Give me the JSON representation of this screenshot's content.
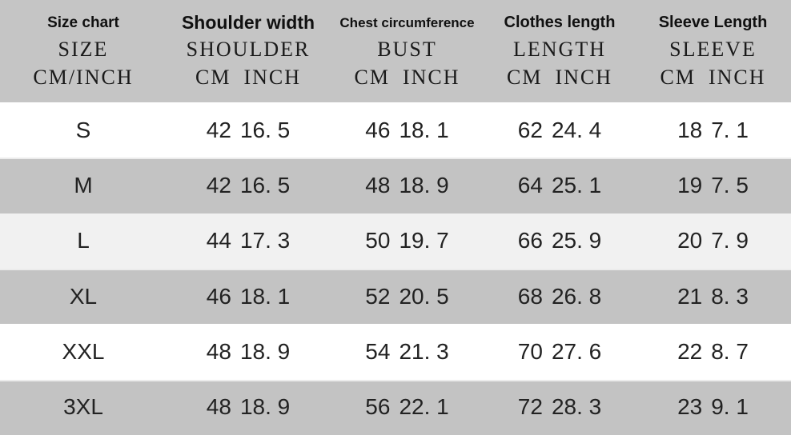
{
  "palette": {
    "header_bg": "#c5c5c5",
    "row_gray": "#c3c3c3",
    "row_white": "#ffffff",
    "row_offwhite": "#f1f1f1",
    "text": "#1c1c1c"
  },
  "table": {
    "columns": [
      {
        "title": "Size chart",
        "subtitle": "SIZE",
        "units": "CM/INCH"
      },
      {
        "title": "Shoulder width",
        "subtitle": "SHOULDER",
        "unit_cm": "CM",
        "unit_inch": "INCH"
      },
      {
        "title": "Chest circumference",
        "subtitle": "BUST",
        "unit_cm": "CM",
        "unit_inch": "INCH"
      },
      {
        "title": "Clothes length",
        "subtitle": "LENGTH",
        "unit_cm": "CM",
        "unit_inch": "INCH"
      },
      {
        "title": "Sleeve Length",
        "subtitle": "SLEEVE",
        "unit_cm": "CM",
        "unit_inch": "INCH"
      }
    ],
    "rows": [
      {
        "size": "S",
        "shoulder": {
          "cm": "42",
          "inch": "16. 5"
        },
        "bust": {
          "cm": "46",
          "inch": "18. 1"
        },
        "length": {
          "cm": "62",
          "inch": "24. 4"
        },
        "sleeve": {
          "cm": "18",
          "inch": "7. 1"
        }
      },
      {
        "size": "M",
        "shoulder": {
          "cm": "42",
          "inch": "16. 5"
        },
        "bust": {
          "cm": "48",
          "inch": "18. 9"
        },
        "length": {
          "cm": "64",
          "inch": "25. 1"
        },
        "sleeve": {
          "cm": "19",
          "inch": "7. 5"
        }
      },
      {
        "size": "L",
        "shoulder": {
          "cm": "44",
          "inch": "17. 3"
        },
        "bust": {
          "cm": "50",
          "inch": "19. 7"
        },
        "length": {
          "cm": "66",
          "inch": "25. 9"
        },
        "sleeve": {
          "cm": "20",
          "inch": "7. 9"
        }
      },
      {
        "size": "XL",
        "shoulder": {
          "cm": "46",
          "inch": "18. 1"
        },
        "bust": {
          "cm": "52",
          "inch": "20. 5"
        },
        "length": {
          "cm": "68",
          "inch": "26. 8"
        },
        "sleeve": {
          "cm": "21",
          "inch": "8. 3"
        }
      },
      {
        "size": "XXL",
        "shoulder": {
          "cm": "48",
          "inch": "18. 9"
        },
        "bust": {
          "cm": "54",
          "inch": "21. 3"
        },
        "length": {
          "cm": "70",
          "inch": "27. 6"
        },
        "sleeve": {
          "cm": "22",
          "inch": "8. 7"
        }
      },
      {
        "size": "3XL",
        "shoulder": {
          "cm": "48",
          "inch": "18. 9"
        },
        "bust": {
          "cm": "56",
          "inch": "22. 1"
        },
        "length": {
          "cm": "72",
          "inch": "28. 3"
        },
        "sleeve": {
          "cm": "23",
          "inch": "9. 1"
        }
      }
    ]
  },
  "chart_data": {
    "type": "table",
    "title": "Size chart",
    "headers": [
      "SIZE",
      "SHOULDER CM",
      "SHOULDER INCH",
      "BUST CM",
      "BUST INCH",
      "LENGTH CM",
      "LENGTH INCH",
      "SLEEVE CM",
      "SLEEVE INCH"
    ],
    "rows": [
      [
        "S",
        42,
        16.5,
        46,
        18.1,
        62,
        24.4,
        18,
        7.1
      ],
      [
        "M",
        42,
        16.5,
        48,
        18.9,
        64,
        25.1,
        19,
        7.5
      ],
      [
        "L",
        44,
        17.3,
        50,
        19.7,
        66,
        25.9,
        20,
        7.9
      ],
      [
        "XL",
        46,
        18.1,
        52,
        20.5,
        68,
        26.8,
        21,
        8.3
      ],
      [
        "XXL",
        48,
        18.9,
        54,
        21.3,
        70,
        27.6,
        22,
        8.7
      ],
      [
        "3XL",
        48,
        18.9,
        56,
        22.1,
        72,
        28.3,
        23,
        9.1
      ]
    ]
  }
}
